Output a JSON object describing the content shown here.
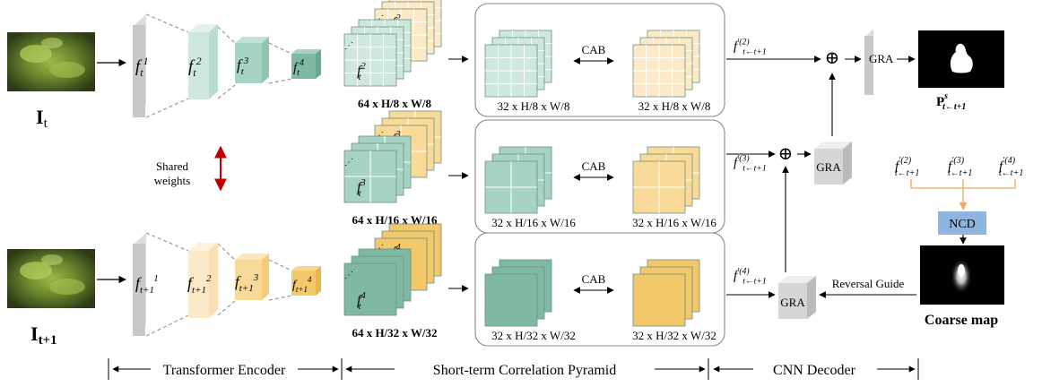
{
  "inputs": {
    "top_label": "I",
    "top_sub": "t",
    "bottom_label": "I",
    "bottom_sub": "t+1"
  },
  "encoder": {
    "shared_weights_line1": "Shared",
    "shared_weights_line2": "weights",
    "top_features": [
      {
        "base": "f",
        "sub": "t",
        "sup": "1"
      },
      {
        "base": "f",
        "sub": "t",
        "sup": "2"
      },
      {
        "base": "f",
        "sub": "t",
        "sup": "3"
      },
      {
        "base": "f",
        "sub": "t",
        "sup": "4"
      }
    ],
    "bottom_features": [
      {
        "base": "f",
        "sub": "t+1",
        "sup": "1"
      },
      {
        "base": "f",
        "sub": "t+1",
        "sup": "2"
      },
      {
        "base": "f",
        "sub": "t+1",
        "sup": "3"
      },
      {
        "base": "f",
        "sub": "t+1",
        "sup": "4"
      }
    ]
  },
  "pyramid": {
    "levels": [
      {
        "front": {
          "base": "f",
          "sub": "t",
          "sup": "2"
        },
        "back": {
          "base": "f",
          "sub": "t+1",
          "sup": "2"
        },
        "dim": "64 x H/8 x W/8",
        "left_dim": "32 x H/8 x W/8",
        "right_dim": "32 x H/8 x W/8",
        "cab": "CAB",
        "out": {
          "base": "f",
          "sub": "t←t+1",
          "sup": "′(2)"
        }
      },
      {
        "front": {
          "base": "f",
          "sub": "t",
          "sup": "3"
        },
        "back": {
          "base": "f",
          "sub": "t+1",
          "sup": "3"
        },
        "dim": "64 x H/16 x W/16",
        "left_dim": "32 x H/16 x W/16",
        "right_dim": "32 x H/16 x W/16",
        "cab": "CAB",
        "out": {
          "base": "f",
          "sub": "t←t+1",
          "sup": "′(3)"
        }
      },
      {
        "front": {
          "base": "f",
          "sub": "t",
          "sup": "4"
        },
        "back": {
          "base": "f",
          "sub": "t+1",
          "sup": "4"
        },
        "dim": "64 x H/32 x W/32",
        "left_dim": "32 x H/32 x W/32",
        "right_dim": "32 x H/32 x W/32",
        "cab": "CAB",
        "out": {
          "base": "f",
          "sub": "t←t+1",
          "sup": "′(4)"
        }
      }
    ]
  },
  "decoder": {
    "gra": "GRA",
    "plus": "⊕",
    "ncd": "NCD",
    "reversal_guide": "Reversal Guide",
    "coarse_map": "Coarse map",
    "pred_base": "P",
    "pred_sup": "s",
    "pred_sub": "t←t+1",
    "ncd_inputs": [
      {
        "base": "f",
        "sub": "t←t+1",
        "sup": "′(2)"
      },
      {
        "base": "f",
        "sub": "t←t+1",
        "sup": "′(3)"
      },
      {
        "base": "f",
        "sub": "t←t+1",
        "sup": "′(4)"
      }
    ]
  },
  "footer": {
    "encoder": "Transformer Encoder",
    "pyramid": "Short-term Correlation Pyramid",
    "decoder": "CNN Decoder"
  },
  "colors": {
    "green_light": "#cfe8de",
    "green_mid": "#a7d3c2",
    "green_dark": "#7fb9a1",
    "yellow_light": "#fbe9c7",
    "yellow_mid": "#f8d998",
    "yellow_dark": "#f2c86a",
    "gray": "#c8c8c8",
    "ncd_blue": "#8fb4dd",
    "orange": "#f2a865",
    "red": "#c00000"
  }
}
